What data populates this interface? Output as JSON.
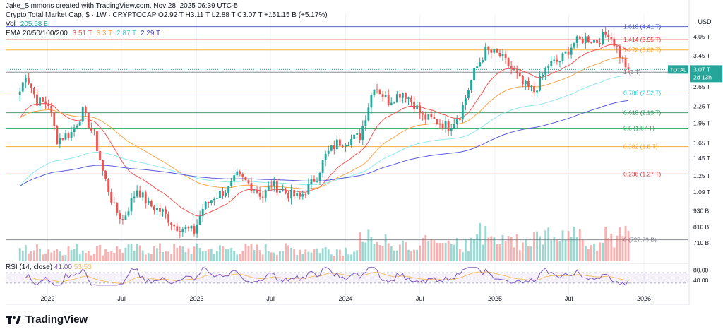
{
  "header": {
    "credit": "Jake_Simmons created with TradingView.com, Nov 28, 2025 06:39 UTC-5",
    "symbol_line": "Crypto Total Market Cap, $ · 1W · CRYPTOCAP  O2.92 T  H3.11 T  L2.88 T  C3.07 T  +151.15 B (+5.17%)",
    "vol_label": "Vol",
    "vol_value": "205.58 B",
    "ema_label": "EMA 20/50/100/200",
    "ema_values": [
      "3.51 T",
      "3.3 T",
      "2.87 T",
      "2.29 T"
    ]
  },
  "colors": {
    "up": "#26a69a",
    "down": "#ef5350",
    "ema20": "#ef5350",
    "ema50": "#f7a64a",
    "ema100": "#8ee8ee",
    "ema200": "#5b5bd6",
    "rsi": "#7e57c2",
    "rsi_ma": "#f5c06a"
  },
  "price_axis": {
    "currency": "USD",
    "ticks": [
      "4.05 T",
      "3.45 T",
      "2.65 T",
      "2.25 T",
      "1.95 T",
      "1.65 T",
      "1.45 T",
      "1.25 T",
      "1.09 T",
      "930 B",
      "810 B",
      "710 B"
    ],
    "current_tag": "TOTAL",
    "current_value": "3.07 T",
    "countdown": "2d 13h"
  },
  "rsi_axis": {
    "ticks": [
      "80.00",
      "40.00"
    ]
  },
  "rsi_header": {
    "label": "RSI (14, close)",
    "value": "41.00",
    "ma_value": "53.53"
  },
  "x_axis": {
    "labels": [
      "2022",
      "Jul",
      "2023",
      "Jul",
      "2024",
      "Jul",
      "2025",
      "Jul",
      "2026"
    ]
  },
  "brand": "TradingView",
  "chart_data": {
    "type": "candlestick",
    "title": "Crypto Total Market Cap, $ · 1W · CRYPTOCAP",
    "fib_levels": [
      {
        "label": "1.618 (4.41 T)",
        "value": 4.41,
        "color": "#3b4ec9"
      },
      {
        "label": "1.414 (3.95 T)",
        "value": 3.95,
        "color": "#e53935"
      },
      {
        "label": "1.272 (3.62 T)",
        "value": 3.62,
        "color": "#f59f1c"
      },
      {
        "label": "1 (3 T)",
        "value": 3.0,
        "color": "#787b86"
      },
      {
        "label": "0.786 (2.52 T)",
        "value": 2.52,
        "color": "#26c6da"
      },
      {
        "label": "0.618 (2.13 T)",
        "value": 2.13,
        "color": "#2e8b57"
      },
      {
        "label": "0.5 (1.87 T)",
        "value": 1.87,
        "color": "#22a85a"
      },
      {
        "label": "0.382 (1.6 T)",
        "value": 1.6,
        "color": "#f59f1c"
      },
      {
        "label": "0.236 (1.27 T)",
        "value": 1.27,
        "color": "#e53935"
      },
      {
        "label": "0 (727.73 B)",
        "value": 0.72773,
        "color": "#787b86"
      }
    ],
    "price_path": [
      [
        "2021-10-25",
        2.55
      ],
      [
        "2021-11-08",
        2.95
      ],
      [
        "2021-12-06",
        2.35
      ],
      [
        "2022-01-03",
        2.3
      ],
      [
        "2022-01-24",
        1.7
      ],
      [
        "2022-02-28",
        1.8
      ],
      [
        "2022-03-28",
        2.15
      ],
      [
        "2022-04-25",
        1.75
      ],
      [
        "2022-05-16",
        1.3
      ],
      [
        "2022-06-13",
        0.95
      ],
      [
        "2022-07-04",
        0.86
      ],
      [
        "2022-08-08",
        1.12
      ],
      [
        "2022-09-05",
        0.98
      ],
      [
        "2022-10-10",
        0.92
      ],
      [
        "2022-11-07",
        0.82
      ],
      [
        "2022-12-26",
        0.78
      ],
      [
        "2023-01-16",
        0.95
      ],
      [
        "2023-02-13",
        1.05
      ],
      [
        "2023-03-20",
        1.12
      ],
      [
        "2023-04-10",
        1.25
      ],
      [
        "2023-05-15",
        1.15
      ],
      [
        "2023-06-12",
        1.05
      ],
      [
        "2023-07-03",
        1.17
      ],
      [
        "2023-08-14",
        1.07
      ],
      [
        "2023-09-11",
        1.04
      ],
      [
        "2023-10-23",
        1.25
      ],
      [
        "2023-11-13",
        1.48
      ],
      [
        "2023-12-11",
        1.65
      ],
      [
        "2024-01-15",
        1.7
      ],
      [
        "2024-02-05",
        1.75
      ],
      [
        "2024-03-11",
        2.7
      ],
      [
        "2024-04-15",
        2.35
      ],
      [
        "2024-05-20",
        2.55
      ],
      [
        "2024-06-17",
        2.3
      ],
      [
        "2024-07-08",
        2.05
      ],
      [
        "2024-08-05",
        2.0
      ],
      [
        "2024-09-09",
        1.9
      ],
      [
        "2024-10-07",
        2.1
      ],
      [
        "2024-11-11",
        3.0
      ],
      [
        "2024-12-09",
        3.6
      ],
      [
        "2025-01-13",
        3.45
      ],
      [
        "2025-02-10",
        3.1
      ],
      [
        "2025-03-10",
        2.7
      ],
      [
        "2025-04-07",
        2.55
      ],
      [
        "2025-05-12",
        3.2
      ],
      [
        "2025-06-09",
        3.3
      ],
      [
        "2025-07-14",
        3.85
      ],
      [
        "2025-08-11",
        4.0
      ],
      [
        "2025-09-08",
        3.9
      ],
      [
        "2025-10-06",
        4.2
      ],
      [
        "2025-10-20",
        3.85
      ],
      [
        "2025-11-10",
        3.3
      ],
      [
        "2025-11-24",
        3.07
      ]
    ],
    "ema_series": [
      {
        "name": "EMA 20",
        "last": 3.51
      },
      {
        "name": "EMA 50",
        "last": 3.3
      },
      {
        "name": "EMA 100",
        "last": 2.87
      },
      {
        "name": "EMA 200",
        "last": 2.29
      }
    ],
    "rsi": {
      "period": 14,
      "last": 41.0,
      "ma_last": 53.53,
      "range": [
        0,
        100
      ],
      "bands": [
        30,
        70
      ]
    },
    "x_range": [
      "2021-09-20",
      "2026-04-20"
    ],
    "y_scale": "log"
  }
}
